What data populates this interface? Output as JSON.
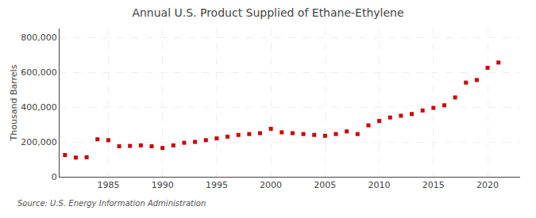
{
  "chart_data": {
    "type": "scatter",
    "title": "Annual U.S. Product Supplied of Ethane-Ethylene",
    "ylabel": "Thousand Barrels",
    "annotations": [
      "Source: U.S. Energy Information Administration"
    ],
    "x": [
      1981,
      1982,
      1983,
      1984,
      1985,
      1986,
      1987,
      1988,
      1989,
      1990,
      1991,
      1992,
      1993,
      1994,
      1995,
      1996,
      1997,
      1998,
      1999,
      2000,
      2001,
      2002,
      2003,
      2004,
      2005,
      2006,
      2007,
      2008,
      2009,
      2010,
      2011,
      2012,
      2013,
      2014,
      2015,
      2016,
      2017,
      2018,
      2019,
      2020,
      2021
    ],
    "values": [
      125000,
      110000,
      112000,
      215000,
      210000,
      175000,
      177000,
      180000,
      175000,
      165000,
      180000,
      195000,
      200000,
      210000,
      220000,
      230000,
      240000,
      245000,
      250000,
      275000,
      255000,
      250000,
      245000,
      240000,
      235000,
      245000,
      260000,
      245000,
      295000,
      320000,
      340000,
      350000,
      360000,
      380000,
      395000,
      410000,
      455000,
      540000,
      555000,
      625000,
      655000
    ],
    "color": "#cc0000",
    "marker": "square",
    "xlim": [
      1980.5,
      2023
    ],
    "xticks": [
      1985,
      1990,
      1995,
      2000,
      2005,
      2010,
      2015,
      2020
    ],
    "ylim": [
      0,
      850000
    ],
    "yticks": [
      0,
      {
        "value": 200000,
        "label": "200,000"
      },
      {
        "value": 400000,
        "label": "400,000"
      },
      {
        "value": 600000,
        "label": "600,000"
      },
      {
        "value": 800000,
        "label": "800,000"
      }
    ],
    "grid": true
  }
}
